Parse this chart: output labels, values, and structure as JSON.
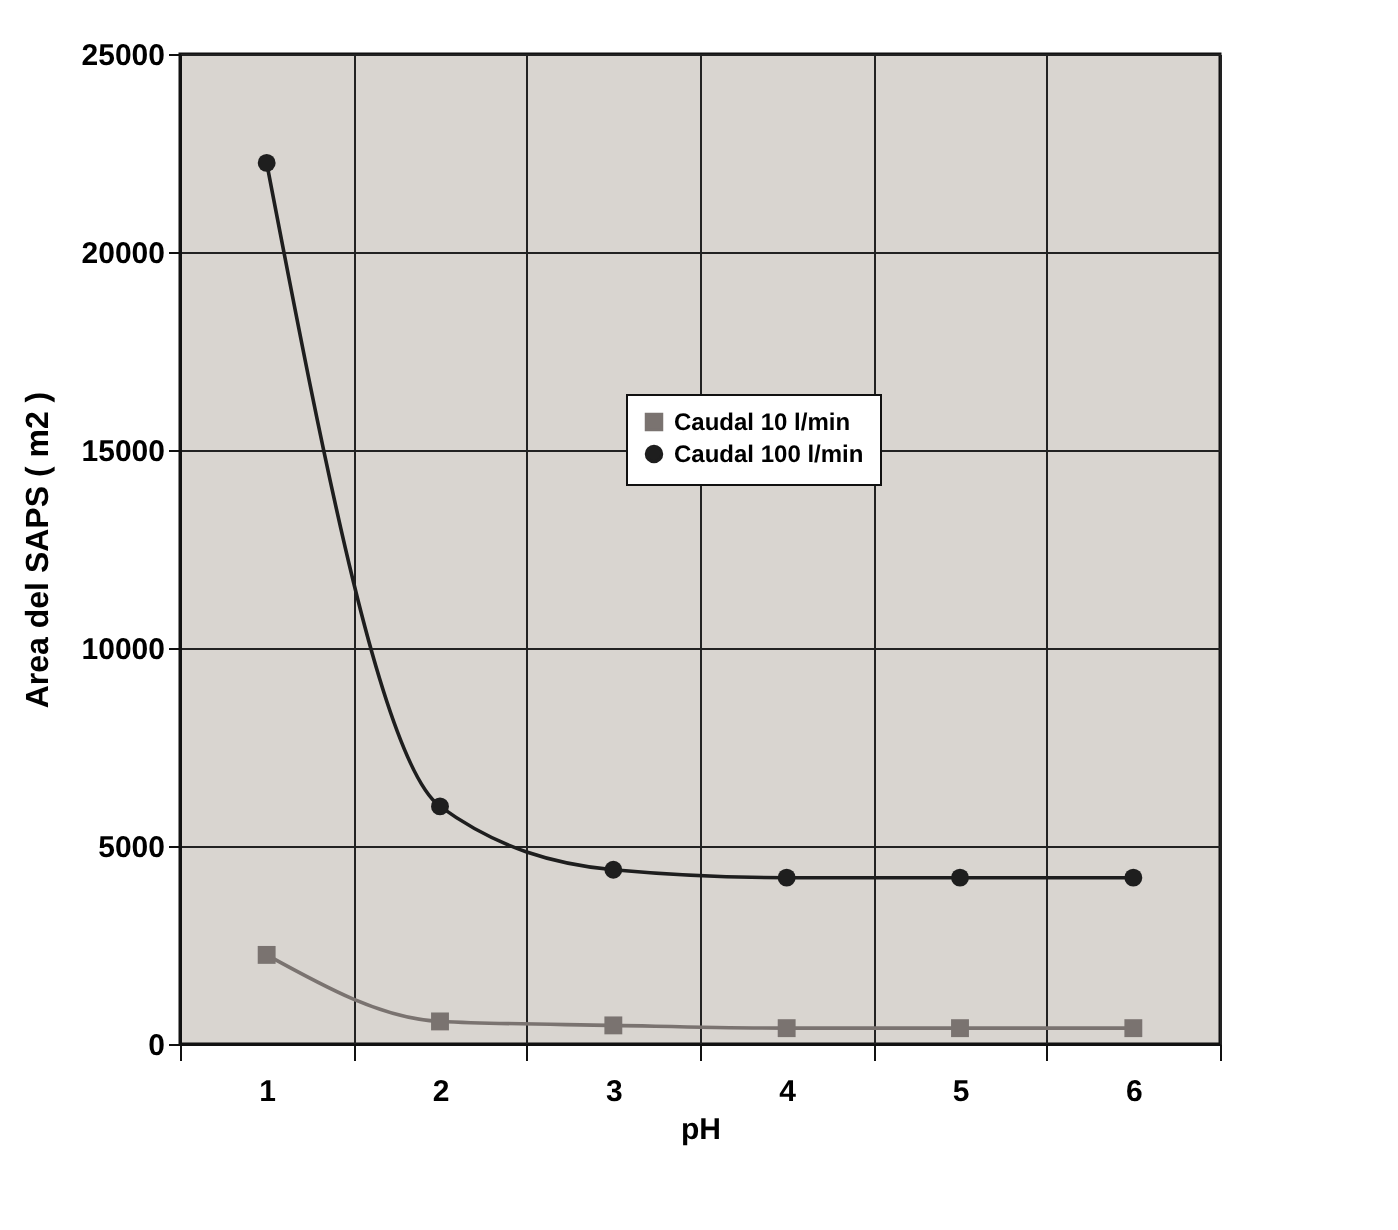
{
  "chart_data": {
    "type": "line",
    "xlabel": "pH",
    "ylabel": "Area del  SAPS  ( m2 )",
    "categories": [
      "1",
      "2",
      "3",
      "4",
      "5",
      "6"
    ],
    "series": [
      {
        "name": "Caudal 10 l/min",
        "color": "#7a7370",
        "marker": "square",
        "values": [
          2250,
          570,
          470,
          400,
          400,
          400
        ]
      },
      {
        "name": "Caudal 100 l/min",
        "color": "#1e1e1e",
        "marker": "circle",
        "values": [
          22250,
          6000,
          4400,
          4200,
          4200,
          4200
        ]
      }
    ],
    "ylim": [
      0,
      25000
    ],
    "yticks": [
      0,
      5000,
      10000,
      15000,
      20000,
      25000
    ],
    "grid": true,
    "legend": "top right",
    "line_style": "solid"
  }
}
